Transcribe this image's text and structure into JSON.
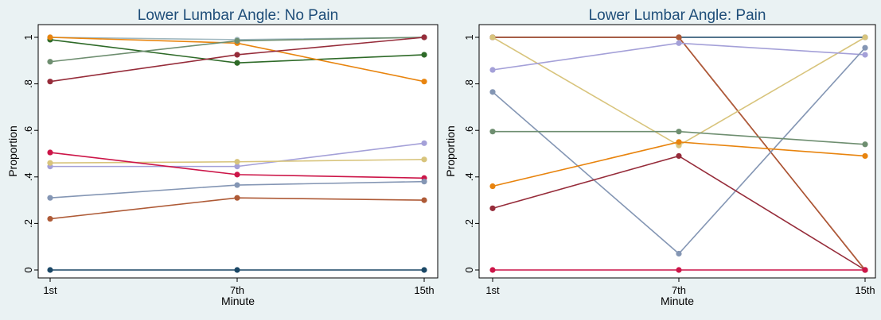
{
  "chart_data": [
    {
      "type": "line",
      "title": "Lower Lumbar Angle: No Pain",
      "xlabel": "Minute",
      "ylabel": "Proportion",
      "categories": [
        "1st",
        "7th",
        "15th"
      ],
      "yticks": [
        "0",
        ".2",
        ".4",
        ".6",
        ".8",
        "1"
      ],
      "ylim": [
        0,
        1
      ],
      "grid": false,
      "series": [
        {
          "color": "#a0b8c0",
          "values": [
            1.0,
            0.99,
            1.0
          ]
        },
        {
          "color": "#2e6a28",
          "values": [
            0.99,
            0.89,
            0.925
          ]
        },
        {
          "color": "#e8840e",
          "values": [
            1.0,
            0.975,
            0.81
          ]
        },
        {
          "color": "#6e8e70",
          "values": [
            0.895,
            0.985,
            1.0
          ]
        },
        {
          "color": "#962c3a",
          "values": [
            0.81,
            0.925,
            1.0
          ]
        },
        {
          "color": "#a4a0d8",
          "values": [
            0.445,
            0.445,
            0.545
          ]
        },
        {
          "color": "#d8c47c",
          "values": [
            0.46,
            0.465,
            0.475
          ]
        },
        {
          "color": "#cc1548",
          "values": [
            0.505,
            0.41,
            0.395
          ]
        },
        {
          "color": "#8496b4",
          "values": [
            0.31,
            0.365,
            0.38
          ]
        },
        {
          "color": "#ae5a36",
          "values": [
            0.22,
            0.31,
            0.3
          ]
        },
        {
          "color": "#1a4766",
          "values": [
            0.0,
            0.0,
            0.0
          ]
        }
      ]
    },
    {
      "type": "line",
      "title": "Lower Lumbar Angle: Pain",
      "xlabel": "Minute",
      "ylabel": "Proportion",
      "categories": [
        "1st",
        "7th",
        "15th"
      ],
      "yticks": [
        "0",
        ".2",
        ".4",
        ".6",
        ".8",
        "1"
      ],
      "ylim": [
        0,
        1
      ],
      "grid": false,
      "series": [
        {
          "color": "#1a4766",
          "values": [
            1.0,
            1.0,
            1.0
          ]
        },
        {
          "color": "#962c3a",
          "values": [
            1.0,
            1.0,
            0.0
          ]
        },
        {
          "color": "#ae5a36",
          "values": [
            1.0,
            1.0,
            0.0
          ]
        },
        {
          "color": "#d8c47c",
          "values": [
            1.0,
            0.535,
            1.0
          ]
        },
        {
          "color": "#a4a0d8",
          "values": [
            0.86,
            0.975,
            0.925
          ]
        },
        {
          "color": "#8496b4",
          "values": [
            0.765,
            0.07,
            0.955
          ]
        },
        {
          "color": "#6e8e70",
          "values": [
            0.595,
            0.595,
            0.54
          ]
        },
        {
          "color": "#e8840e",
          "values": [
            0.36,
            0.55,
            0.49
          ]
        },
        {
          "color": "#962c3a",
          "values": [
            0.265,
            0.49,
            0.0
          ]
        },
        {
          "color": "#cc1548",
          "values": [
            0.0,
            0.0,
            0.0
          ]
        }
      ]
    }
  ]
}
